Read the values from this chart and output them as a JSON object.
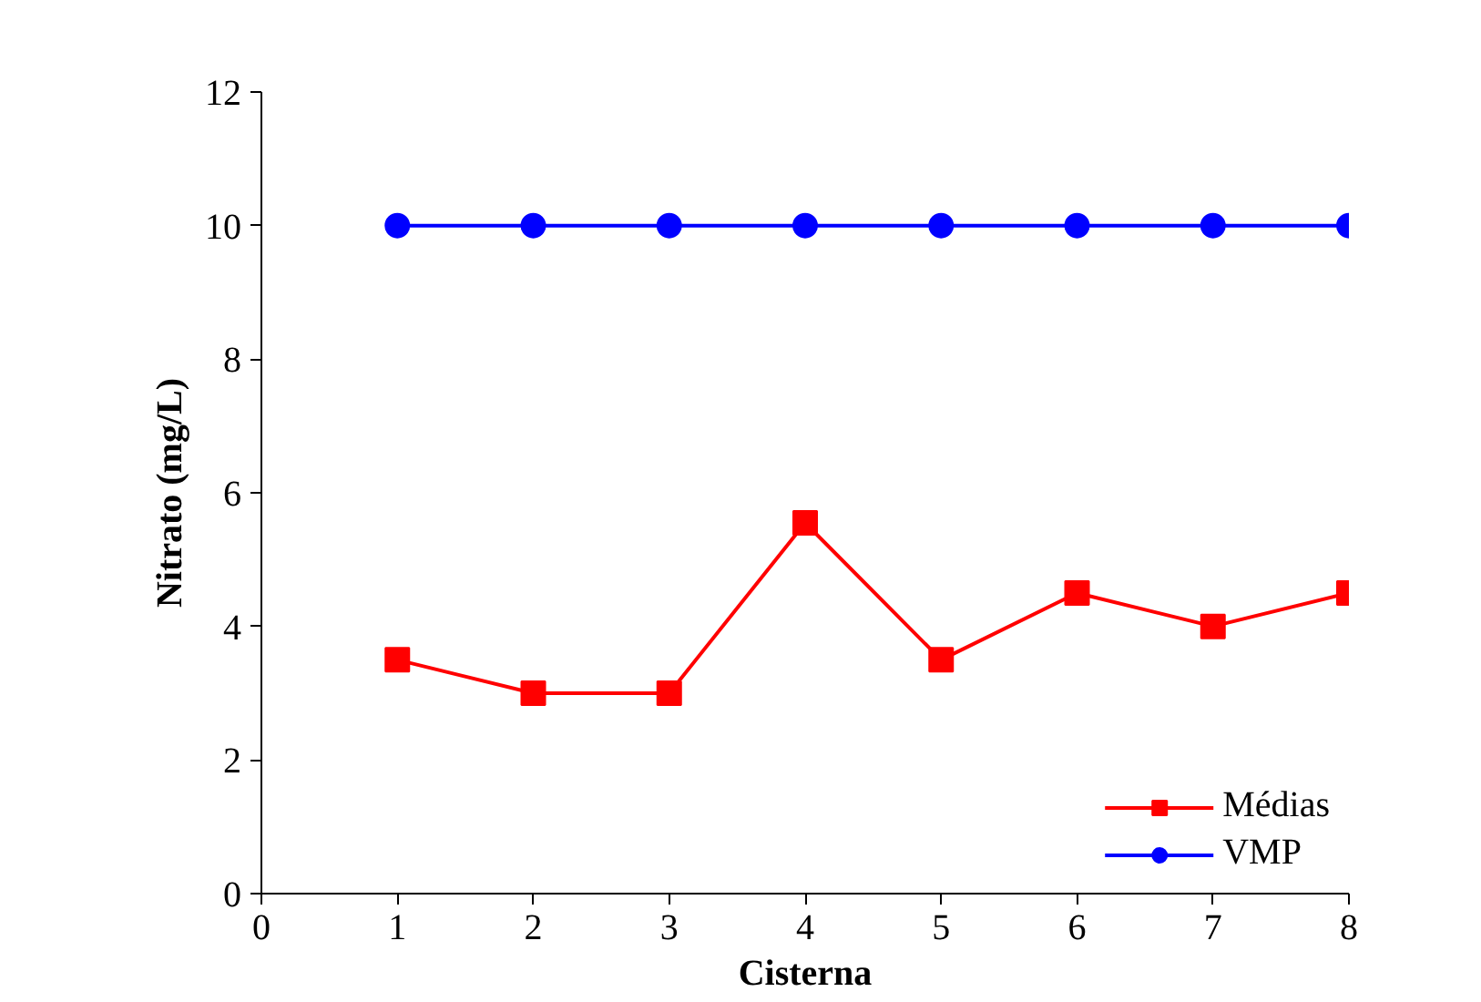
{
  "chart_data": {
    "type": "line",
    "xlabel": "Cisterna",
    "ylabel": "Nitrato (mg/L)",
    "x": [
      1,
      2,
      3,
      4,
      5,
      6,
      7,
      8
    ],
    "series": [
      {
        "name": "Médias",
        "color": "#ff0000",
        "marker": "square",
        "values": [
          3.5,
          3.0,
          3.0,
          5.55,
          3.5,
          4.5,
          4.0,
          4.5
        ]
      },
      {
        "name": "VMP",
        "color": "#0000ff",
        "marker": "circle",
        "values": [
          10,
          10,
          10,
          10,
          10,
          10,
          10,
          10
        ]
      }
    ],
    "xlim": [
      0,
      8
    ],
    "xticks": [
      0,
      1,
      2,
      3,
      4,
      5,
      6,
      7,
      8
    ],
    "ylim": [
      0,
      12
    ],
    "yticks": [
      0,
      2,
      4,
      6,
      8,
      10,
      12
    ],
    "grid": false,
    "legend": "bottom right"
  }
}
